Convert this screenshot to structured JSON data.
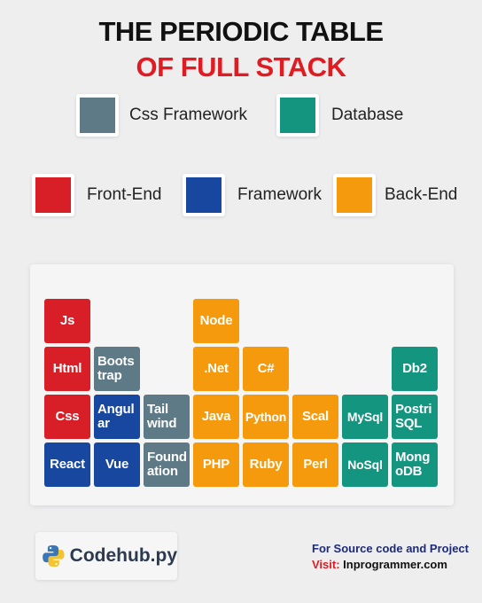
{
  "header": {
    "title_line1": "THE PERIODIC TABLE",
    "title_line2": "OF FULL STACK"
  },
  "colors": {
    "css_framework": "#5f7a87",
    "database": "#14957f",
    "front_end": "#d81f27",
    "framework": "#1847a0",
    "back_end": "#f59a0c",
    "title_accent": "#e01b22"
  },
  "legend": {
    "css_framework": "Css Framework",
    "database": "Database",
    "front_end": "Front-End",
    "framework": "Framework",
    "back_end": "Back-End"
  },
  "table": {
    "js": "Js",
    "html": "Html",
    "css": "Css",
    "react": "React",
    "bootstrap_1": "Boots",
    "bootstrap_2": "trap",
    "angular_1": "Angul",
    "angular_2": "ar",
    "vue": "Vue",
    "tailwind_1": "Tail",
    "tailwind_2": "wind",
    "foundation_1": "Found",
    "foundation_2": "ation",
    "node": "Node",
    "dotnet": ".Net",
    "java": "Java",
    "php": "PHP",
    "csharp": "C#",
    "python": "Python",
    "ruby": "Ruby",
    "scala": "Scal",
    "perl": "Perl",
    "mysql": "MySql",
    "nosql": "NoSql",
    "db2": "Db2",
    "postgresql_1": "Postri",
    "postgresql_2": "SQL",
    "mongodb_1": "Mong",
    "mongodb_2": "oDB"
  },
  "footer": {
    "logo_icon": "python-logo-icon",
    "logo_text": "Codehub.py",
    "source_line": "For Source code and Project",
    "visit_label": "Visit:",
    "visit_value": " Inprogrammer.com"
  }
}
